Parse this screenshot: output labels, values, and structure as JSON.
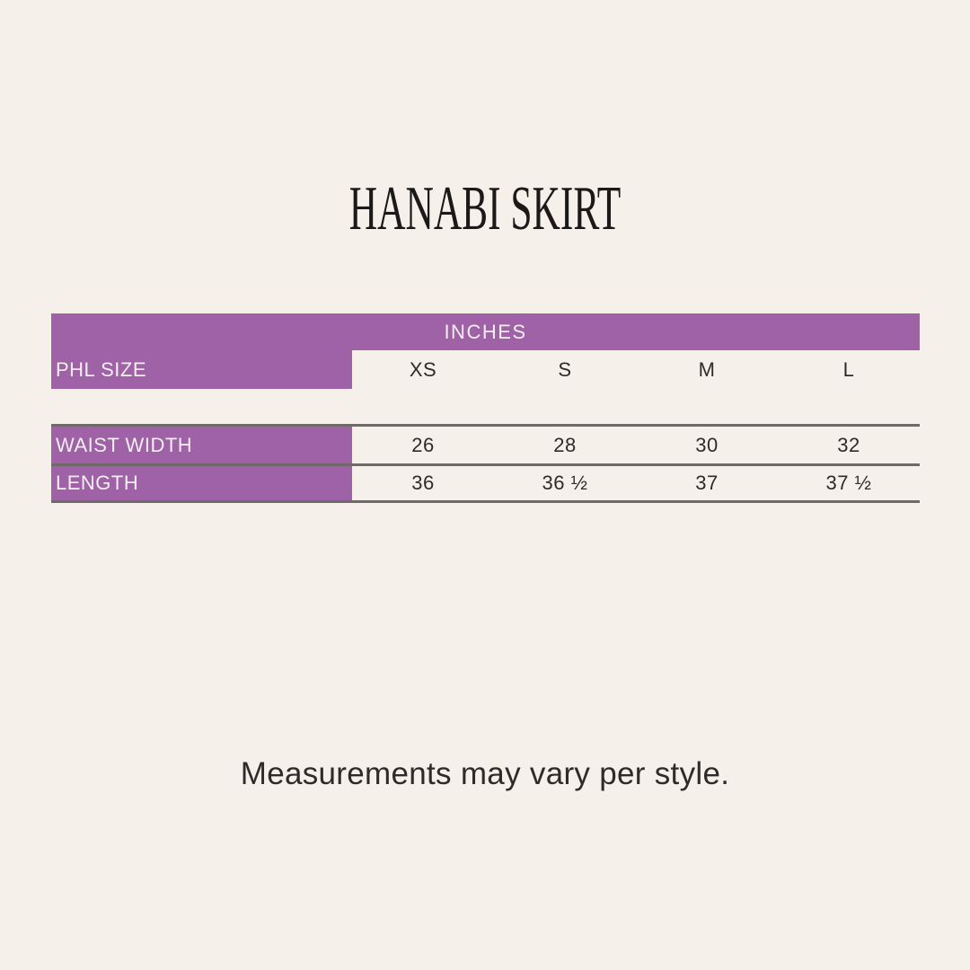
{
  "title": "HANABI SKIRT",
  "footnote": "Measurements may vary per style.",
  "colors": {
    "background": "#F6F0EA",
    "accent_purple": "#A062A6",
    "rule_gray": "#6F6A67",
    "text_dark": "#2E2B29",
    "text_on_purple": "#F5EEF2"
  },
  "chart_data": {
    "type": "table",
    "title": "HANABI SKIRT",
    "unit_header": "INCHES",
    "size_label": "PHL SIZE",
    "sizes": [
      "XS",
      "S",
      "M",
      "L"
    ],
    "rows": [
      {
        "label": "WAIST WIDTH",
        "values": [
          "26",
          "28",
          "30",
          "32"
        ]
      },
      {
        "label": "LENGTH",
        "values": [
          "36",
          "36 ½",
          "37",
          "37 ½"
        ]
      }
    ],
    "note": "Measurements may vary per style."
  }
}
